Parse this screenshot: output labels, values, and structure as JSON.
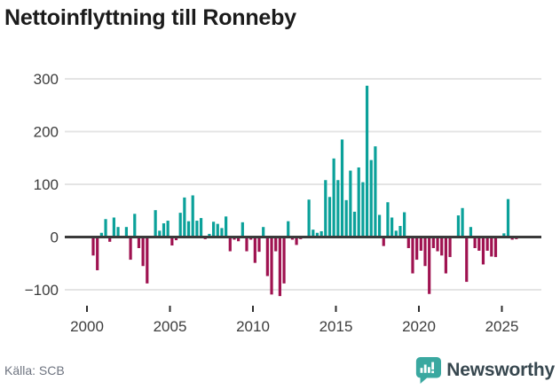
{
  "title": "Nettoinflyttning till Ronneby",
  "footer": {
    "source": "Källa: SCB",
    "brand": "Newsworthy"
  },
  "colors": {
    "positive_bar": "#0ba19a",
    "negative_bar": "#9f1250",
    "grid_line": "#e4e4e4",
    "zero_line": "#3a3a3a",
    "axis_text": "#3d3d3d",
    "title_text": "#1b1b1b",
    "source_text": "#6e7480",
    "brand_text": "#37474f",
    "brand_icon": "#3aa8a0"
  },
  "chart_data": {
    "type": "bar",
    "title": "Nettoinflyttning till Ronneby",
    "xlabel": "",
    "ylabel": "",
    "frequency": "quarterly",
    "start_period": "2000Q1",
    "end_period": "2025Q4",
    "x_ticks": [
      2000,
      2005,
      2010,
      2015,
      2020,
      2025
    ],
    "y_ticks": [
      300,
      200,
      100,
      0,
      -100
    ],
    "ylim": [
      -130,
      310
    ],
    "grid": "horizontal",
    "legend": "none",
    "series": [
      {
        "name": "Nettoinflyttning",
        "values": [
          0,
          -35,
          -63,
          8,
          34,
          -9,
          37,
          19,
          0,
          19,
          -43,
          44,
          -21,
          -55,
          -88,
          0,
          51,
          12,
          26,
          31,
          -16,
          -6,
          46,
          75,
          30,
          79,
          31,
          36,
          -4,
          6,
          29,
          25,
          17,
          39,
          -27,
          -5,
          -8,
          28,
          -27,
          -5,
          -49,
          -28,
          19,
          -74,
          -109,
          -27,
          -112,
          -88,
          30,
          -5,
          -15,
          -4,
          0,
          71,
          14,
          8,
          11,
          108,
          76,
          149,
          108,
          185,
          70,
          126,
          48,
          132,
          104,
          287,
          146,
          172,
          42,
          -17,
          66,
          37,
          12,
          21,
          47,
          -21,
          -69,
          -43,
          -26,
          -55,
          -108,
          -21,
          -27,
          -35,
          -69,
          -38,
          0,
          41,
          55,
          -85,
          19,
          -21,
          -26,
          -52,
          -26,
          -37,
          -38,
          0,
          7,
          72,
          -5,
          -4
        ]
      }
    ]
  }
}
